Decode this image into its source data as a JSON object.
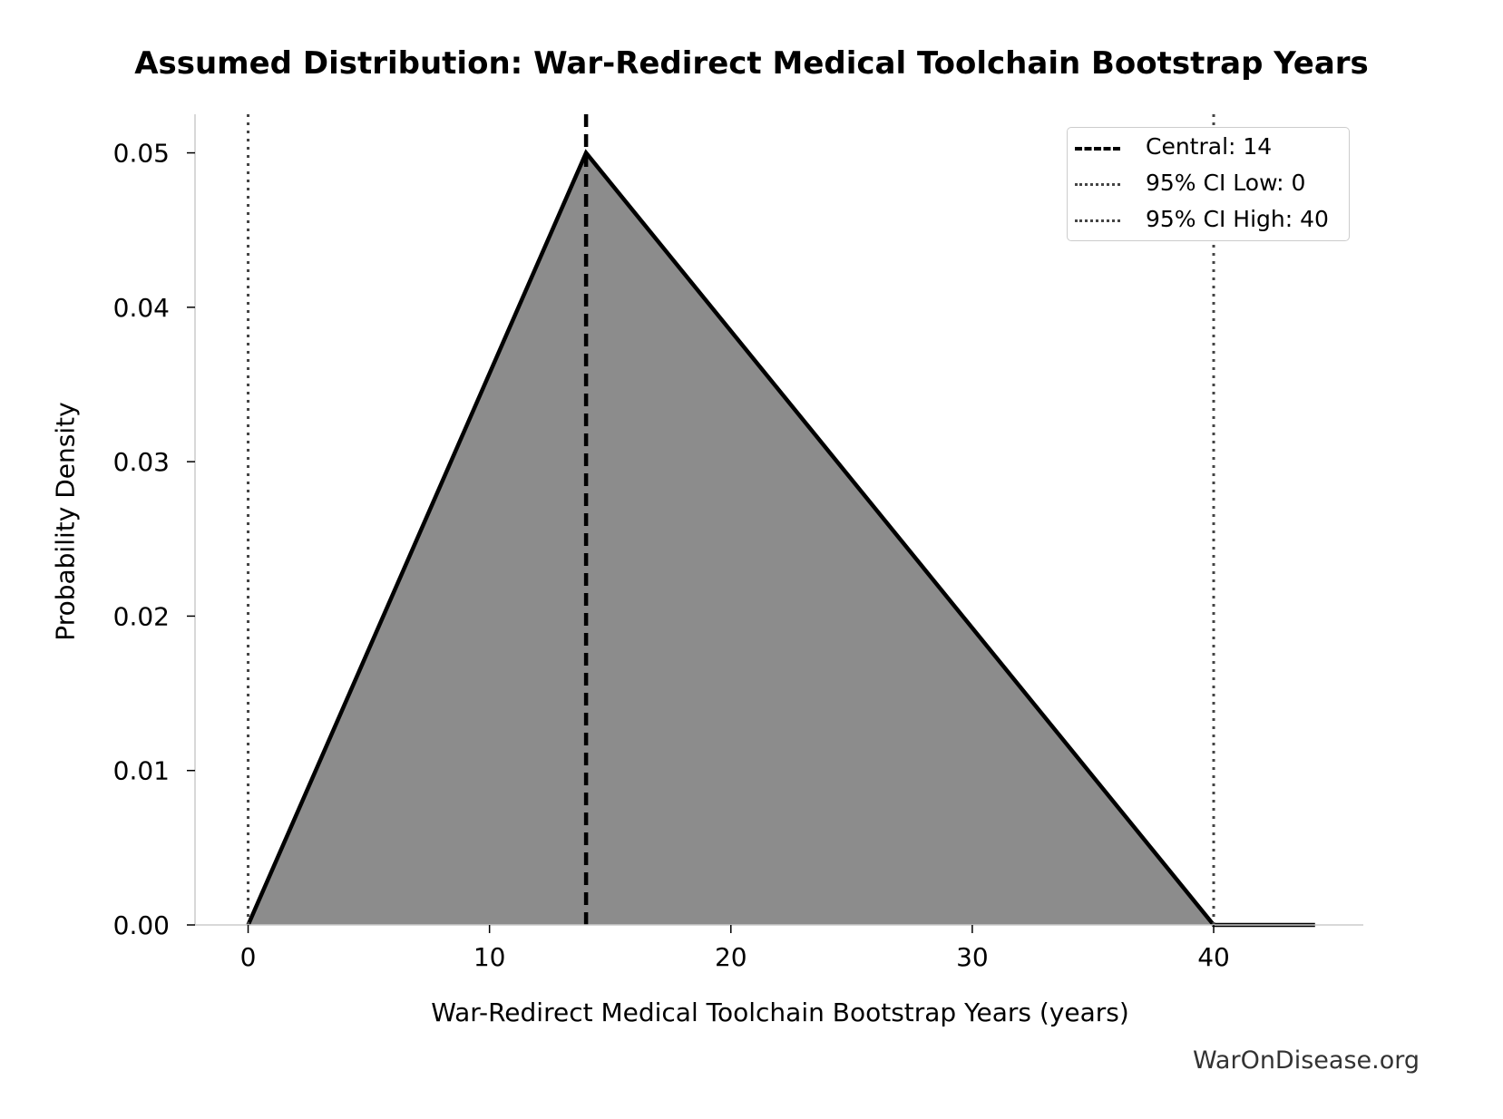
{
  "chart_data": {
    "type": "area",
    "title": "Assumed Distribution: War-Redirect Medical Toolchain Bootstrap Years",
    "xlabel": "War-Redirect Medical Toolchain Bootstrap Years (years)",
    "ylabel": "Probability Density",
    "xlim": [
      -2.2,
      46.2
    ],
    "ylim": [
      0,
      0.0525
    ],
    "x_ticks": [
      0,
      10,
      20,
      30,
      40
    ],
    "x_tick_labels": [
      "0",
      "10",
      "20",
      "30",
      "40"
    ],
    "y_ticks": [
      0,
      0.01,
      0.02,
      0.03,
      0.04,
      0.05
    ],
    "y_tick_labels": [
      "0.00",
      "0.01",
      "0.02",
      "0.03",
      "0.04",
      "0.05"
    ],
    "grid": false,
    "legend_position": "top-right",
    "series": [
      {
        "name": "",
        "x": [
          0,
          14,
          40,
          44.2
        ],
        "y": [
          0,
          0.05,
          0,
          0
        ],
        "fill": "#8c8c8c",
        "line_color": "#000000"
      }
    ],
    "reference_lines": [
      {
        "label": "Central: 14",
        "x": 14,
        "style": "dashed",
        "color": "#000000"
      },
      {
        "label": "95% CI Low: 0",
        "x": 0,
        "style": "dotted",
        "color": "#444444"
      },
      {
        "label": "95% CI High: 40",
        "x": 40,
        "style": "dotted",
        "color": "#444444"
      }
    ]
  },
  "watermark": "WarOnDisease.org"
}
